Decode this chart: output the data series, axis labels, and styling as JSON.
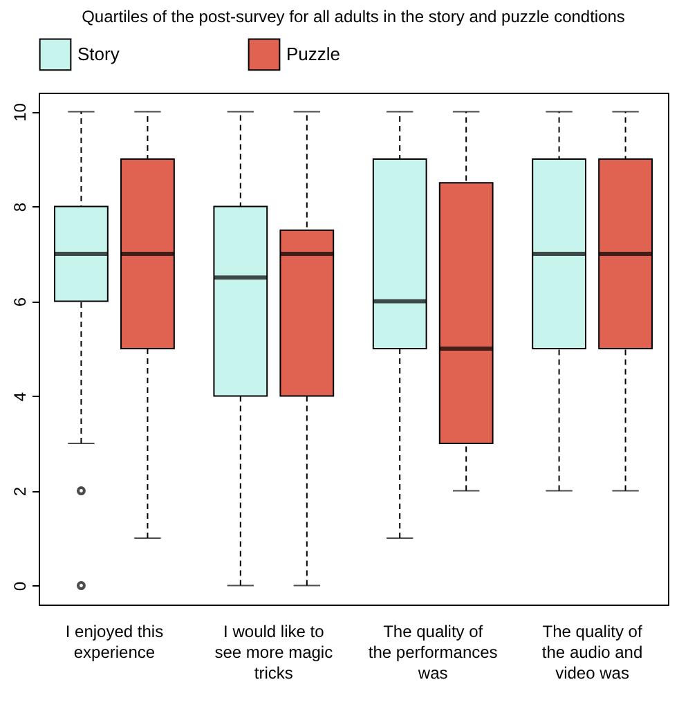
{
  "chart_data": {
    "type": "box",
    "title": "Quartiles of the post-survey for all adults in the story and puzzle condtions",
    "categories": [
      "I enjoyed this experience",
      "I would like to see more magic tricks",
      "The quality of the performances was",
      "The quality of the audio and video was"
    ],
    "series": [
      {
        "name": "Story",
        "color": "#c8f4ee",
        "boxes": [
          {
            "low": 3,
            "q1": 6,
            "median": 7,
            "q3": 8,
            "high": 10,
            "outliers": [
              2,
              0
            ]
          },
          {
            "low": 0,
            "q1": 4,
            "median": 6.5,
            "q3": 8,
            "high": 10
          },
          {
            "low": 1,
            "q1": 5,
            "median": 6,
            "q3": 9,
            "high": 10
          },
          {
            "low": 2,
            "q1": 5,
            "median": 7,
            "q3": 9,
            "high": 10
          }
        ]
      },
      {
        "name": "Puzzle",
        "color": "#e06250",
        "boxes": [
          {
            "low": 1,
            "q1": 5,
            "median": 7,
            "q3": 9,
            "high": 10
          },
          {
            "low": 0,
            "q1": 4,
            "median": 7,
            "q3": 7.5,
            "high": 10
          },
          {
            "low": 2,
            "q1": 3,
            "median": 5,
            "q3": 8.5,
            "high": 10
          },
          {
            "low": 2,
            "q1": 5,
            "median": 7,
            "q3": 9,
            "high": 10
          }
        ]
      }
    ],
    "ylim": [
      -0.4,
      10.4
    ],
    "yticks": [
      0,
      2,
      4,
      6,
      8,
      10
    ],
    "grid": false,
    "legend": "top",
    "line_style": "dashed"
  }
}
